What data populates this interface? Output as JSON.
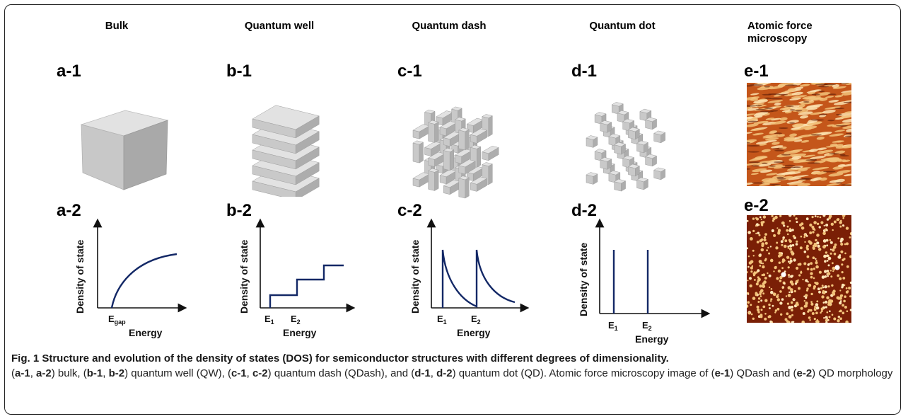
{
  "columns": [
    {
      "title": "Bulk"
    },
    {
      "title": "Quantum well"
    },
    {
      "title": "Quantum dash"
    },
    {
      "title": "Quantum dot"
    },
    {
      "title": "Atomic force microscopy"
    }
  ],
  "panels": {
    "a1": "a-1",
    "a2": "a-2",
    "b1": "b-1",
    "b2": "b-2",
    "c1": "c-1",
    "c2": "c-2",
    "d1": "d-1",
    "d2": "d-2",
    "e1": "e-1",
    "e2": "e-2"
  },
  "axes": {
    "y_label": "Density of state",
    "x_label": "Energy"
  },
  "ticks": {
    "a": [
      {
        "main": "E",
        "sub": "gap"
      }
    ],
    "b": [
      {
        "main": "E",
        "sub": "1"
      },
      {
        "main": "E",
        "sub": "2"
      }
    ],
    "c": [
      {
        "main": "E",
        "sub": "1"
      },
      {
        "main": "E",
        "sub": "2"
      }
    ],
    "d": [
      {
        "main": "E",
        "sub": "1"
      },
      {
        "main": "E",
        "sub": "2"
      }
    ]
  },
  "colors": {
    "curve": "#132866",
    "cube_front": "#c9c9c9",
    "cube_top": "#e2e2e2",
    "cube_side": "#adadad",
    "afm_base": "#7a1f06",
    "afm_feature": "#f2c27a"
  },
  "caption": {
    "title": "Fig. 1 Structure and evolution of the density of states (DOS) for semiconductor structures with different degrees of dimensionality.",
    "p1": "(",
    "a1": "a-1",
    "s1": ", ",
    "a2": "a-2",
    "t1": ") bulk, (",
    "b1": "b-1",
    "s2": ", ",
    "b2": "b-2",
    "t2": ") quantum well (QW), (",
    "c1": "c-1",
    "s3": ", ",
    "c2": "c-2",
    "t3": ") quantum dash (QDash), and (",
    "d1": "d-1",
    "s4": ", ",
    "d2": "d-2",
    "t4": ") quantum dot (QD). Atomic force microscopy image of (",
    "e1": "e-1",
    "t5": ") QDash and (",
    "e2": "e-2",
    "t6": ") QD morphology"
  }
}
